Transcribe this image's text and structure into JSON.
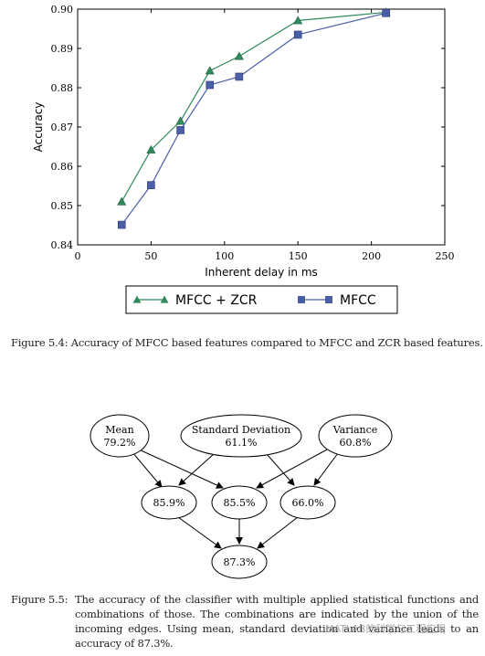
{
  "chart_data": {
    "type": "line",
    "xlabel": "Inherent delay in ms",
    "ylabel": "Accuracy",
    "xlim": [
      0,
      250
    ],
    "ylim": [
      0.84,
      0.9
    ],
    "xticks": [
      "0",
      "50",
      "100",
      "150",
      "200",
      "250"
    ],
    "yticks": [
      "0.84",
      "0.85",
      "0.86",
      "0.87",
      "0.88",
      "0.89",
      "0.90"
    ],
    "grid": false,
    "legend_position": "bottom-outside",
    "series": [
      {
        "name": "MFCC + ZCR",
        "marker": "triangle",
        "color": "#2f8a5c",
        "x": [
          30,
          50,
          70,
          90,
          110,
          150,
          210
        ],
        "y": [
          0.851,
          0.8642,
          0.8715,
          0.8843,
          0.888,
          0.8971,
          0.8992
        ]
      },
      {
        "name": "MFCC",
        "marker": "square",
        "color": "#4a5fa8",
        "x": [
          30,
          50,
          70,
          90,
          110,
          150,
          210
        ],
        "y": [
          0.8451,
          0.8552,
          0.8692,
          0.8807,
          0.8828,
          0.8935,
          0.899
        ]
      }
    ]
  },
  "caption1": "Figure 5.4: Accuracy of MFCC based features compared to MFCC and ZCR based features.",
  "graph": {
    "nodes": [
      {
        "id": "mean",
        "name": "Mean",
        "value": "79.2%"
      },
      {
        "id": "std",
        "name": "Standard Deviation",
        "value": "61.1%"
      },
      {
        "id": "var",
        "name": "Variance",
        "value": "60.8%"
      },
      {
        "id": "c1",
        "value": "85.9%"
      },
      {
        "id": "c2",
        "value": "85.5%"
      },
      {
        "id": "c3",
        "value": "66.0%"
      },
      {
        "id": "all",
        "value": "87.3%"
      }
    ]
  },
  "caption2": {
    "label": "Figure 5.5:",
    "text": "The accuracy of the classifier with multiple applied statistical functions and combinations of those. The combinations are indicated by the union of the incoming edges. Using mean, standard deviation and variance leads to an accuracy of 87.3%."
  },
  "watermark": "MATLAB的科学与工程应用"
}
